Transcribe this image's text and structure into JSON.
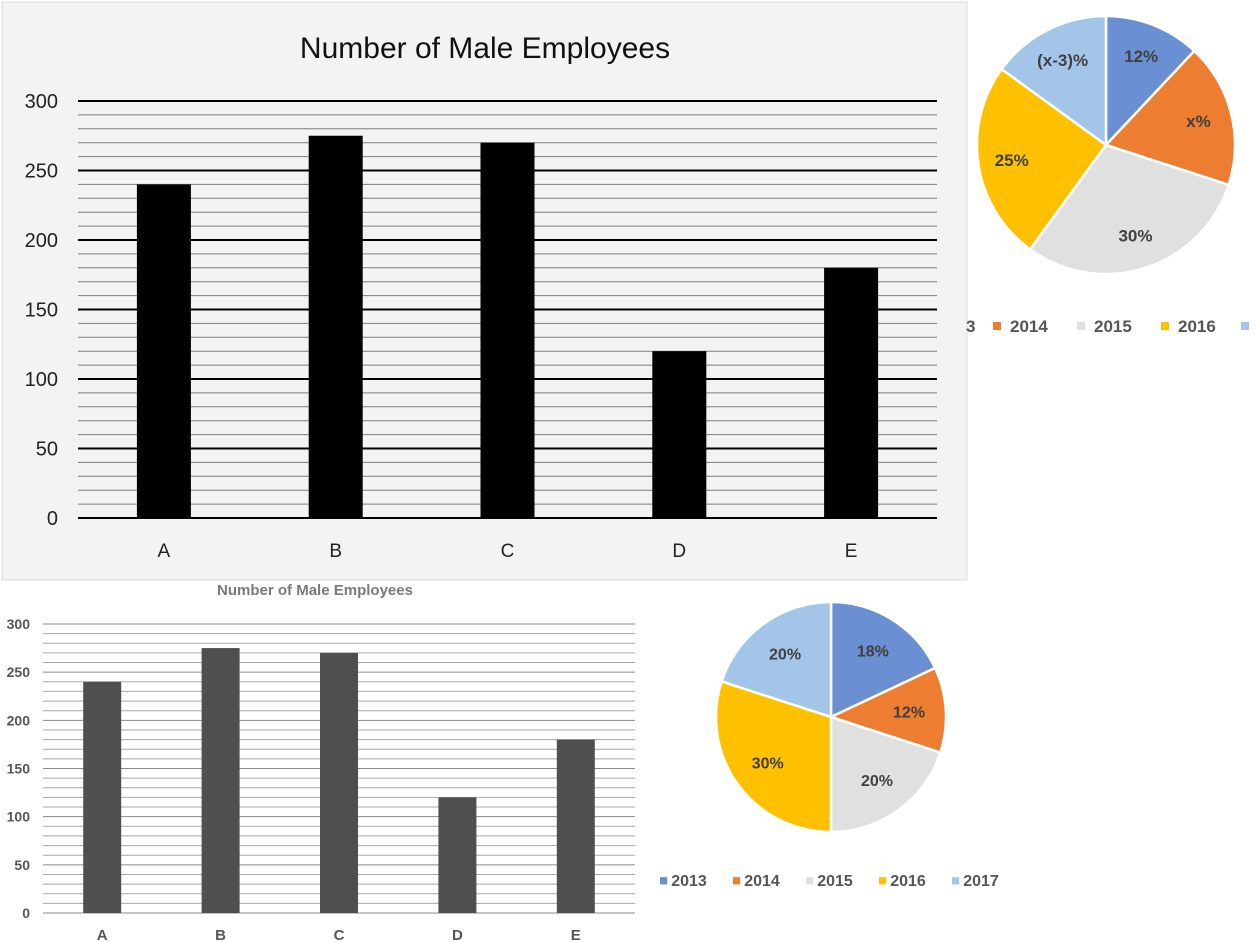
{
  "charts": {
    "bar_top": {
      "title": "Number of Male Employees",
      "colors": {
        "bar": "#000000",
        "panel": "#f3f3f3",
        "grid_major": "#000000",
        "grid_minor": "#888888"
      }
    },
    "bar_bottom": {
      "title": "Number of Male Employees",
      "colors": {
        "bar": "#4f4f4f",
        "panel": "#ffffff",
        "grid": "#9a9a9a"
      }
    },
    "pie_top": {
      "colors": [
        "#6a8fd2",
        "#ed7d31",
        "#e0e0e0",
        "#ffc000",
        "#a3c6e8"
      ]
    },
    "pie_bottom": {
      "colors": [
        "#6a8fd2",
        "#ed7d31",
        "#e0e0e0",
        "#ffc000",
        "#a3c6e8"
      ]
    }
  },
  "chart_data": [
    {
      "type": "bar",
      "title": "Number of Male Employees",
      "categories": [
        "A",
        "B",
        "C",
        "D",
        "E"
      ],
      "values": [
        240,
        275,
        270,
        120,
        180
      ],
      "yticks": [
        "0",
        "50",
        "100",
        "150",
        "200",
        "250",
        "300"
      ],
      "ylim": [
        0,
        300
      ],
      "grid": true
    },
    {
      "type": "pie",
      "slice_values": [
        12,
        18,
        30,
        25,
        15
      ],
      "labels": [
        "12%",
        "x%",
        "30%",
        "25%",
        "(x-3)%"
      ],
      "legend": [
        "3",
        "2014",
        "2015",
        "2016",
        ""
      ],
      "legend_placement": "bottom"
    },
    {
      "type": "bar",
      "title": "Number of Male Employees",
      "categories": [
        "A",
        "B",
        "C",
        "D",
        "E"
      ],
      "values": [
        240,
        275,
        270,
        120,
        180
      ],
      "yticks": [
        "0",
        "50",
        "100",
        "150",
        "200",
        "250",
        "300"
      ],
      "ylim": [
        0,
        300
      ],
      "grid": true
    },
    {
      "type": "pie",
      "slice_values": [
        18,
        12,
        20,
        30,
        20
      ],
      "labels": [
        "18%",
        "12%",
        "20%",
        "30%",
        "20%"
      ],
      "legend": [
        "2013",
        "2014",
        "2015",
        "2016",
        "2017"
      ],
      "legend_placement": "bottom"
    }
  ]
}
